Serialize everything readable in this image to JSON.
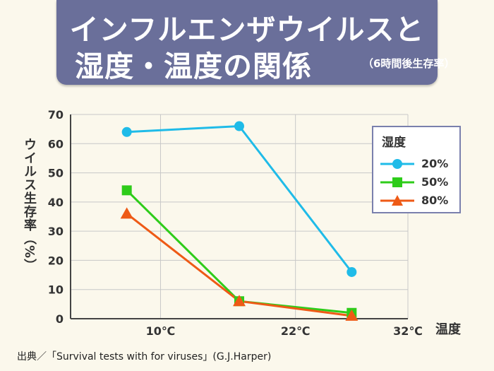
{
  "header": {
    "title_line1": "インフルエンザウイルスと",
    "title_line2": "湿度・温度の関係",
    "subtitle": "（6時間後生存率）"
  },
  "source": "出典／「Survival tests with for viruses」(G.J.Harper)",
  "colors": {
    "background": "#fbf8ec",
    "title_bg": "#6a6f9a",
    "grid": "#c8c8c8",
    "series_20": "#1fbbe8",
    "series_50": "#2ecc1a",
    "series_80": "#ee5a16"
  },
  "chart_data": {
    "type": "line",
    "title": "インフルエンザウイルスと湿度・温度の関係",
    "ylabel": "ウイルス生存率（%）",
    "xlabel": "温度",
    "ylim": [
      0,
      70
    ],
    "yticks": [
      "0",
      "10",
      "20",
      "30",
      "40",
      "50",
      "60",
      "70"
    ],
    "xticks": [
      "10℃",
      "22℃",
      "32℃"
    ],
    "xtick_values": [
      10,
      22,
      32
    ],
    "xlim": [
      2,
      32
    ],
    "grid": true,
    "legend_title": "湿度",
    "legend_position": "top-right",
    "series": [
      {
        "name": "20%",
        "marker": "circle",
        "x": [
          7,
          17,
          27
        ],
        "y": [
          64,
          66,
          16
        ]
      },
      {
        "name": "50%",
        "marker": "square",
        "x": [
          7,
          17,
          27
        ],
        "y": [
          44,
          6,
          2
        ]
      },
      {
        "name": "80%",
        "marker": "triangle",
        "x": [
          7,
          17,
          27
        ],
        "y": [
          36,
          6,
          1
        ]
      }
    ]
  }
}
